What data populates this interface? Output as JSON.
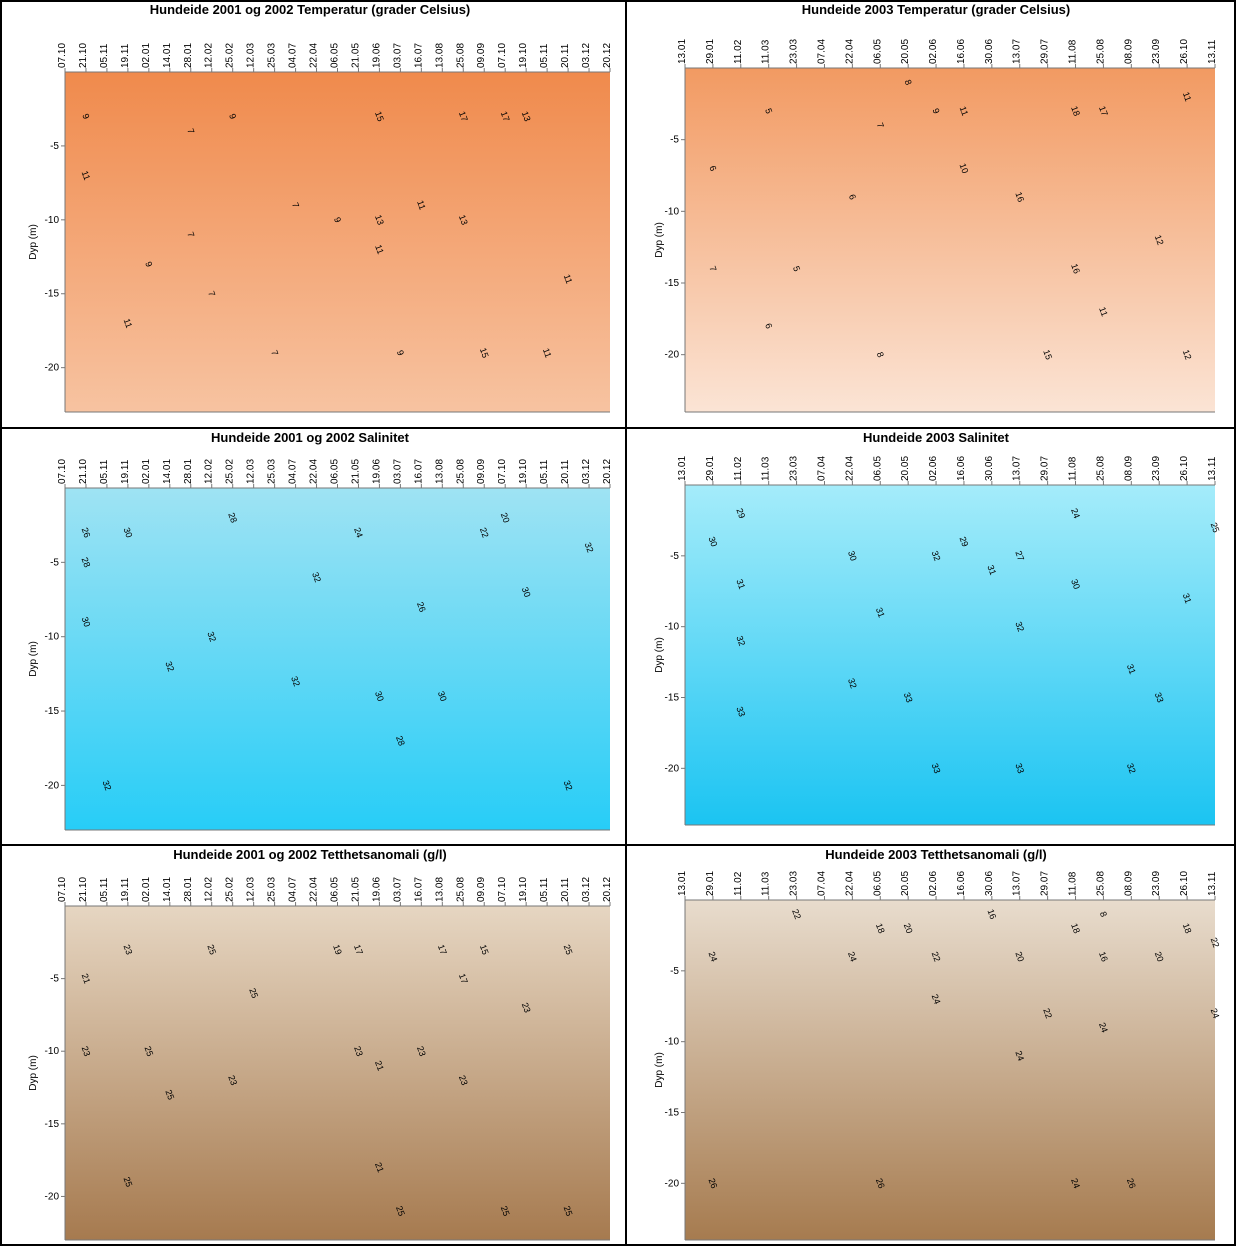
{
  "chart_data": [
    {
      "type": "contour",
      "title": "Hundeide 2001 og 2002 Temperatur (grader Celsius)",
      "y_label": "Dyp (m)",
      "colors": [
        "#f08a4c",
        "#f7c3a1"
      ],
      "categories": [
        "07.10",
        "21.10",
        "05.11",
        "19.11",
        "02.01",
        "14.01",
        "28.01",
        "12.02",
        "25.02",
        "12.03",
        "25.03",
        "04.07",
        "22.04",
        "06.05",
        "21.05",
        "19.06",
        "03.07",
        "16.07",
        "13.08",
        "25.08",
        "09.09",
        "07.10",
        "19.10",
        "05.11",
        "20.11",
        "03.12",
        "20.12"
      ],
      "ylim": [
        -23,
        0
      ],
      "yticks": [
        -20,
        -15,
        -10,
        -5
      ],
      "contour_labels": [
        {
          "level": 9,
          "x": 1,
          "depth": -3
        },
        {
          "level": 11,
          "x": 1,
          "depth": -7
        },
        {
          "level": 9,
          "x": 4,
          "depth": -13
        },
        {
          "level": 11,
          "x": 3,
          "depth": -17
        },
        {
          "level": 7,
          "x": 6,
          "depth": -4
        },
        {
          "level": 7,
          "x": 6,
          "depth": -11
        },
        {
          "level": 7,
          "x": 7,
          "depth": -15
        },
        {
          "level": 9,
          "x": 8,
          "depth": -3
        },
        {
          "level": 7,
          "x": 10,
          "depth": -19
        },
        {
          "level": 7,
          "x": 11,
          "depth": -9
        },
        {
          "level": 9,
          "x": 13,
          "depth": -10
        },
        {
          "level": 15,
          "x": 15,
          "depth": -3
        },
        {
          "level": 13,
          "x": 15,
          "depth": -10
        },
        {
          "level": 11,
          "x": 15,
          "depth": -12
        },
        {
          "level": 9,
          "x": 16,
          "depth": -19
        },
        {
          "level": 11,
          "x": 17,
          "depth": -9
        },
        {
          "level": 17,
          "x": 19,
          "depth": -3
        },
        {
          "level": 13,
          "x": 19,
          "depth": -10
        },
        {
          "level": 17,
          "x": 21,
          "depth": -3
        },
        {
          "level": 13,
          "x": 22,
          "depth": -3
        },
        {
          "level": 11,
          "x": 24,
          "depth": -14
        },
        {
          "level": 11,
          "x": 23,
          "depth": -19
        },
        {
          "level": 15,
          "x": 20,
          "depth": -19
        }
      ]
    },
    {
      "type": "contour",
      "title": "Hundeide 2003 Temperatur (grader Celsius)",
      "y_label": "Dyp (m)",
      "colors": [
        "#f29a62",
        "#fbe4d5"
      ],
      "categories": [
        "13.01",
        "29.01",
        "11.02",
        "11.03",
        "23.03",
        "07.04",
        "22.04",
        "06.05",
        "20.05",
        "02.06",
        "16.06",
        "30.06",
        "13.07",
        "29.07",
        "11.08",
        "25.08",
        "08.09",
        "23.09",
        "26.10",
        "13.11"
      ],
      "ylim": [
        -24,
        0
      ],
      "yticks": [
        -20,
        -15,
        -10,
        -5
      ],
      "contour_labels": [
        {
          "level": 5,
          "x": 3,
          "depth": -3
        },
        {
          "level": 6,
          "x": 1,
          "depth": -7
        },
        {
          "level": 7,
          "x": 1,
          "depth": -14
        },
        {
          "level": 6,
          "x": 3,
          "depth": -18
        },
        {
          "level": 5,
          "x": 4,
          "depth": -14
        },
        {
          "level": 6,
          "x": 6,
          "depth": -9
        },
        {
          "level": 8,
          "x": 7,
          "depth": -20
        },
        {
          "level": 8,
          "x": 8,
          "depth": -1
        },
        {
          "level": 7,
          "x": 7,
          "depth": -4
        },
        {
          "level": 9,
          "x": 9,
          "depth": -3
        },
        {
          "level": 11,
          "x": 10,
          "depth": -3
        },
        {
          "level": 10,
          "x": 10,
          "depth": -7
        },
        {
          "level": 16,
          "x": 12,
          "depth": -9
        },
        {
          "level": 18,
          "x": 14,
          "depth": -3
        },
        {
          "level": 17,
          "x": 15,
          "depth": -3
        },
        {
          "level": 16,
          "x": 14,
          "depth": -14
        },
        {
          "level": 15,
          "x": 13,
          "depth": -20
        },
        {
          "level": 11,
          "x": 15,
          "depth": -17
        },
        {
          "level": 12,
          "x": 17,
          "depth": -12
        },
        {
          "level": 12,
          "x": 18,
          "depth": -20
        },
        {
          "level": 11,
          "x": 18,
          "depth": -2
        }
      ]
    },
    {
      "type": "contour",
      "title": "Hundeide 2001 og 2002 Salinitet",
      "y_label": "Dyp (m)",
      "colors": [
        "#9fe3f3",
        "#27cdf7"
      ],
      "categories": [
        "07.10",
        "21.10",
        "05.11",
        "19.11",
        "02.01",
        "14.01",
        "28.01",
        "12.02",
        "25.02",
        "12.03",
        "25.03",
        "04.07",
        "22.04",
        "06.05",
        "21.05",
        "19.06",
        "03.07",
        "16.07",
        "13.08",
        "25.08",
        "09.09",
        "07.10",
        "19.10",
        "05.11",
        "20.11",
        "03.12",
        "20.12"
      ],
      "ylim": [
        -23,
        0
      ],
      "yticks": [
        -20,
        -15,
        -10,
        -5
      ],
      "contour_labels": [
        {
          "level": 26,
          "x": 1,
          "depth": -3
        },
        {
          "level": 28,
          "x": 1,
          "depth": -5
        },
        {
          "level": 30,
          "x": 1,
          "depth": -9
        },
        {
          "level": 30,
          "x": 3,
          "depth": -3
        },
        {
          "level": 32,
          "x": 5,
          "depth": -12
        },
        {
          "level": 32,
          "x": 2,
          "depth": -20
        },
        {
          "level": 32,
          "x": 7,
          "depth": -10
        },
        {
          "level": 28,
          "x": 8,
          "depth": -2
        },
        {
          "level": 32,
          "x": 11,
          "depth": -13
        },
        {
          "level": 32,
          "x": 12,
          "depth": -6
        },
        {
          "level": 24,
          "x": 14,
          "depth": -3
        },
        {
          "level": 30,
          "x": 15,
          "depth": -14
        },
        {
          "level": 28,
          "x": 16,
          "depth": -17
        },
        {
          "level": 26,
          "x": 17,
          "depth": -8
        },
        {
          "level": 30,
          "x": 18,
          "depth": -14
        },
        {
          "level": 22,
          "x": 20,
          "depth": -3
        },
        {
          "level": 20,
          "x": 21,
          "depth": -2
        },
        {
          "level": 30,
          "x": 22,
          "depth": -7
        },
        {
          "level": 32,
          "x": 25,
          "depth": -4
        },
        {
          "level": 32,
          "x": 24,
          "depth": -20
        }
      ]
    },
    {
      "type": "contour",
      "title": "Hundeide 2003 Salinitet",
      "y_label": "Dyp (m)",
      "colors": [
        "#a5ecfa",
        "#1bc4f2"
      ],
      "categories": [
        "13.01",
        "29.01",
        "11.02",
        "11.03",
        "23.03",
        "07.04",
        "22.04",
        "06.05",
        "20.05",
        "02.06",
        "16.06",
        "30.06",
        "13.07",
        "29.07",
        "11.08",
        "25.08",
        "08.09",
        "23.09",
        "26.10",
        "13.11"
      ],
      "ylim": [
        -24,
        0
      ],
      "yticks": [
        -20,
        -15,
        -10,
        -5
      ],
      "contour_labels": [
        {
          "level": 29,
          "x": 2,
          "depth": -2
        },
        {
          "level": 30,
          "x": 1,
          "depth": -4
        },
        {
          "level": 31,
          "x": 2,
          "depth": -7
        },
        {
          "level": 32,
          "x": 2,
          "depth": -11
        },
        {
          "level": 33,
          "x": 2,
          "depth": -16
        },
        {
          "level": 30,
          "x": 6,
          "depth": -5
        },
        {
          "level": 31,
          "x": 7,
          "depth": -9
        },
        {
          "level": 32,
          "x": 6,
          "depth": -14
        },
        {
          "level": 33,
          "x": 8,
          "depth": -15
        },
        {
          "level": 33,
          "x": 9,
          "depth": -20
        },
        {
          "level": 32,
          "x": 9,
          "depth": -5
        },
        {
          "level": 29,
          "x": 10,
          "depth": -4
        },
        {
          "level": 31,
          "x": 11,
          "depth": -6
        },
        {
          "level": 27,
          "x": 12,
          "depth": -5
        },
        {
          "level": 32,
          "x": 12,
          "depth": -10
        },
        {
          "level": 33,
          "x": 12,
          "depth": -20
        },
        {
          "level": 30,
          "x": 14,
          "depth": -7
        },
        {
          "level": 24,
          "x": 14,
          "depth": -2
        },
        {
          "level": 31,
          "x": 16,
          "depth": -13
        },
        {
          "level": 32,
          "x": 16,
          "depth": -20
        },
        {
          "level": 33,
          "x": 17,
          "depth": -15
        },
        {
          "level": 25,
          "x": 19,
          "depth": -3
        },
        {
          "level": 31,
          "x": 18,
          "depth": -8
        }
      ]
    },
    {
      "type": "contour",
      "title": "Hundeide 2001 og 2002 Tetthetsanomali (g/l)",
      "y_label": "Dyp (m)",
      "colors": [
        "#e6d6c2",
        "#a67a4f"
      ],
      "categories": [
        "07.10",
        "21.10",
        "05.11",
        "19.11",
        "02.01",
        "14.01",
        "28.01",
        "12.02",
        "25.02",
        "12.03",
        "25.03",
        "04.07",
        "22.04",
        "06.05",
        "21.05",
        "19.06",
        "03.07",
        "16.07",
        "13.08",
        "25.08",
        "09.09",
        "07.10",
        "19.10",
        "05.11",
        "20.11",
        "03.12",
        "20.12"
      ],
      "ylim": [
        -23,
        0
      ],
      "yticks": [
        -20,
        -15,
        -10,
        -5
      ],
      "contour_labels": [
        {
          "level": 23,
          "x": 3,
          "depth": -3
        },
        {
          "level": 21,
          "x": 1,
          "depth": -5
        },
        {
          "level": 23,
          "x": 1,
          "depth": -10
        },
        {
          "level": 25,
          "x": 4,
          "depth": -10
        },
        {
          "level": 25,
          "x": 5,
          "depth": -13
        },
        {
          "level": 25,
          "x": 7,
          "depth": -3
        },
        {
          "level": 23,
          "x": 8,
          "depth": -12
        },
        {
          "level": 25,
          "x": 9,
          "depth": -6
        },
        {
          "level": 19,
          "x": 13,
          "depth": -3
        },
        {
          "level": 17,
          "x": 14,
          "depth": -3
        },
        {
          "level": 23,
          "x": 14,
          "depth": -10
        },
        {
          "level": 21,
          "x": 15,
          "depth": -11
        },
        {
          "level": 21,
          "x": 15,
          "depth": -18
        },
        {
          "level": 25,
          "x": 16,
          "depth": -21
        },
        {
          "level": 23,
          "x": 17,
          "depth": -10
        },
        {
          "level": 17,
          "x": 18,
          "depth": -3
        },
        {
          "level": 17,
          "x": 19,
          "depth": -5
        },
        {
          "level": 23,
          "x": 19,
          "depth": -12
        },
        {
          "level": 15,
          "x": 20,
          "depth": -3
        },
        {
          "level": 23,
          "x": 22,
          "depth": -7
        },
        {
          "level": 25,
          "x": 21,
          "depth": -21
        },
        {
          "level": 25,
          "x": 24,
          "depth": -3
        },
        {
          "level": 25,
          "x": 24,
          "depth": -21
        },
        {
          "level": 25,
          "x": 3,
          "depth": -19
        }
      ]
    },
    {
      "type": "contour",
      "title": "Hundeide 2003 Tetthetsanomali (g/l)",
      "y_label": "Dyp (m)",
      "colors": [
        "#e8dccd",
        "#a67b4f"
      ],
      "categories": [
        "13.01",
        "29.01",
        "11.02",
        "11.03",
        "23.03",
        "07.04",
        "22.04",
        "06.05",
        "20.05",
        "02.06",
        "16.06",
        "30.06",
        "13.07",
        "29.07",
        "11.08",
        "25.08",
        "08.09",
        "23.09",
        "26.10",
        "13.11"
      ],
      "ylim": [
        -24,
        0
      ],
      "yticks": [
        -20,
        -15,
        -10,
        -5
      ],
      "contour_labels": [
        {
          "level": 24,
          "x": 1,
          "depth": -4
        },
        {
          "level": 26,
          "x": 1,
          "depth": -20
        },
        {
          "level": 22,
          "x": 4,
          "depth": -1
        },
        {
          "level": 24,
          "x": 6,
          "depth": -4
        },
        {
          "level": 18,
          "x": 7,
          "depth": -2
        },
        {
          "level": 26,
          "x": 7,
          "depth": -20
        },
        {
          "level": 20,
          "x": 8,
          "depth": -2
        },
        {
          "level": 22,
          "x": 9,
          "depth": -4
        },
        {
          "level": 24,
          "x": 9,
          "depth": -7
        },
        {
          "level": 16,
          "x": 11,
          "depth": -1
        },
        {
          "level": 20,
          "x": 12,
          "depth": -4
        },
        {
          "level": 18,
          "x": 14,
          "depth": -2
        },
        {
          "level": 16,
          "x": 15,
          "depth": -4
        },
        {
          "level": 22,
          "x": 13,
          "depth": -8
        },
        {
          "level": 24,
          "x": 12,
          "depth": -11
        },
        {
          "level": 8,
          "x": 15,
          "depth": -1
        },
        {
          "level": 24,
          "x": 15,
          "depth": -9
        },
        {
          "level": 24,
          "x": 14,
          "depth": -20
        },
        {
          "level": 26,
          "x": 16,
          "depth": -20
        },
        {
          "level": 20,
          "x": 17,
          "depth": -4
        },
        {
          "level": 18,
          "x": 18,
          "depth": -2
        },
        {
          "level": 22,
          "x": 19,
          "depth": -3
        },
        {
          "level": 24,
          "x": 19,
          "depth": -8
        }
      ]
    }
  ]
}
